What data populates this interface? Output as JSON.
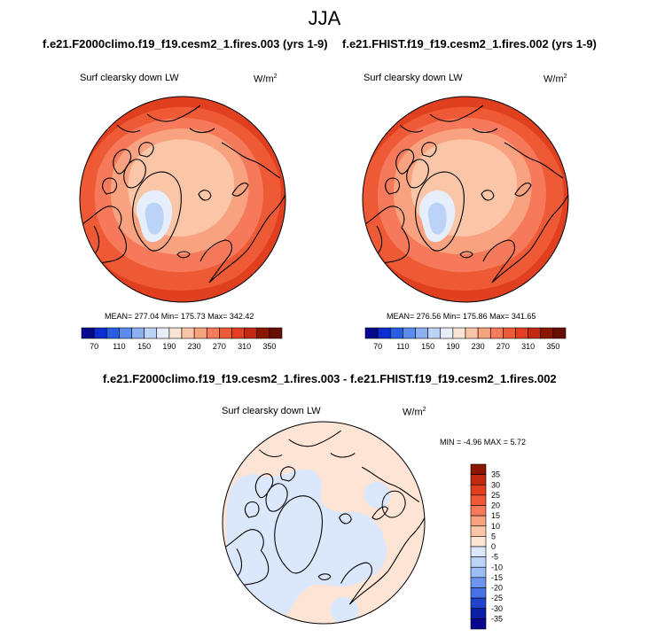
{
  "figure": {
    "title": "JJA",
    "panel_left": {
      "title": "f.e21.F2000climo.f19_f19.cesm2_1.fires.003 (yrs 1-9)",
      "variable": "Surf clearsky down LW",
      "units_base": "W/m",
      "units_exp": "2",
      "stats": "MEAN= 277.04  Min= 175.73  Max= 342.42"
    },
    "panel_right": {
      "title": "f.e21.FHIST.f19_f19.cesm2_1.fires.002 (yrs 1-9)",
      "variable": "Surf clearsky down LW",
      "units_base": "W/m",
      "units_exp": "2",
      "stats": "MEAN= 276.56  Min= 175.86  Max= 341.65"
    },
    "panel_diff": {
      "title": "f.e21.F2000climo.f19_f19.cesm2_1.fires.003 - f.e21.FHIST.f19_f19.cesm2_1.fires.002",
      "variable": "Surf clearsky down LW",
      "units_base": "W/m",
      "units_exp": "2",
      "stats": "MIN =  -4.96 MAX =   5.72"
    }
  },
  "chart_data": [
    {
      "type": "heatmap",
      "projection": "north-polar-stereographic",
      "title": "f.e21.F2000climo.f19_f19.cesm2_1.fires.003 (yrs 1-9)",
      "variable": "Surf clearsky down LW",
      "units": "W/m^2",
      "mean": 277.04,
      "min": 175.73,
      "max": 342.42,
      "colorbar_levels": [
        70,
        90,
        110,
        130,
        150,
        170,
        190,
        210,
        230,
        250,
        270,
        290,
        310,
        330,
        350
      ],
      "colorbar_tick_labels": [
        "70",
        "110",
        "150",
        "190",
        "230",
        "270",
        "310",
        "350"
      ],
      "colorbar_orientation": "horizontal"
    },
    {
      "type": "heatmap",
      "projection": "north-polar-stereographic",
      "title": "f.e21.FHIST.f19_f19.cesm2_1.fires.002 (yrs 1-9)",
      "variable": "Surf clearsky down LW",
      "units": "W/m^2",
      "mean": 276.56,
      "min": 175.86,
      "max": 341.65,
      "colorbar_levels": [
        70,
        90,
        110,
        130,
        150,
        170,
        190,
        210,
        230,
        250,
        270,
        290,
        310,
        330,
        350
      ],
      "colorbar_tick_labels": [
        "70",
        "110",
        "150",
        "190",
        "230",
        "270",
        "310",
        "350"
      ],
      "colorbar_orientation": "horizontal"
    },
    {
      "type": "heatmap",
      "projection": "north-polar-stereographic",
      "title": "f.e21.F2000climo.f19_f19.cesm2_1.fires.003 - f.e21.FHIST.f19_f19.cesm2_1.fires.002",
      "variable": "Surf clearsky down LW",
      "units": "W/m^2",
      "min": -4.96,
      "max": 5.72,
      "colorbar_levels": [
        -35,
        -30,
        -25,
        -20,
        -15,
        -10,
        -5,
        0,
        5,
        10,
        15,
        20,
        25,
        30,
        35
      ],
      "colorbar_tick_labels": [
        "35",
        "30",
        "25",
        "20",
        "15",
        "10",
        "5",
        "0",
        "-5",
        "-10",
        "-15",
        "-20",
        "-25",
        "-30",
        "-35"
      ],
      "colorbar_orientation": "vertical"
    }
  ],
  "colors": {
    "abs_palette": [
      "#08088f",
      "#0a2fcf",
      "#2a5ee6",
      "#5b8af0",
      "#8cb1f4",
      "#bcd3f8",
      "#e6eefc",
      "#fde4d4",
      "#fbc6a8",
      "#f9a27f",
      "#f5795a",
      "#ef5a36",
      "#e0401f",
      "#c02a10",
      "#8c1500",
      "#6a0e00"
    ],
    "diff_palette": [
      "#8c1500",
      "#c02a10",
      "#e0401f",
      "#ef5a36",
      "#f5795a",
      "#f9a27f",
      "#fbc6a8",
      "#fde4d4",
      "#dbe8fb",
      "#bcd3f8",
      "#9bbcf5",
      "#6d95ee",
      "#4772e6",
      "#2244cc",
      "#0a1ea6",
      "#08088f"
    ],
    "coast": "#000000"
  }
}
